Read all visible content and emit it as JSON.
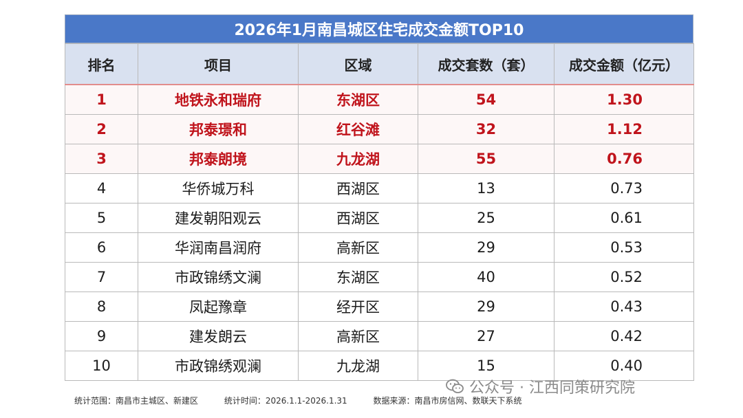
{
  "title": "2026年1月南昌城区住宅成交金额TOP10",
  "headers": [
    "排名",
    "项目",
    "区域",
    "成交套数（套）",
    "成交金额（亿元）"
  ],
  "rows": [
    {
      "rank": "1",
      "project": "地铁永和瑞府",
      "district": "东湖区",
      "units": "54",
      "amount": "1.30"
    },
    {
      "rank": "2",
      "project": "邦泰璟和",
      "district": "红谷滩",
      "units": "32",
      "amount": "1.12"
    },
    {
      "rank": "3",
      "project": "邦泰朗境",
      "district": "九龙湖",
      "units": "55",
      "amount": "0.76"
    },
    {
      "rank": "4",
      "project": "华侨城万科",
      "district": "西湖区",
      "units": "13",
      "amount": "0.73"
    },
    {
      "rank": "5",
      "project": "建发朝阳观云",
      "district": "西湖区",
      "units": "25",
      "amount": "0.61"
    },
    {
      "rank": "6",
      "project": "华润南昌润府",
      "district": "高新区",
      "units": "29",
      "amount": "0.53"
    },
    {
      "rank": "7",
      "project": "市政锦绣文澜",
      "district": "东湖区",
      "units": "40",
      "amount": "0.52"
    },
    {
      "rank": "8",
      "project": "凤起豫章",
      "district": "经开区",
      "units": "29",
      "amount": "0.43"
    },
    {
      "rank": "9",
      "project": "建发朗云",
      "district": "高新区",
      "units": "27",
      "amount": "0.42"
    },
    {
      "rank": "10",
      "project": "市政锦绣观澜",
      "district": "九龙湖",
      "units": "15",
      "amount": "0.40"
    }
  ],
  "footer": {
    "scope": "统计范围：南昌市主城区、新建区",
    "period": "统计时间：2026.1.1-2026.1.31",
    "source": "数据来源：南昌市房信网、数联天下系统"
  },
  "brand": {
    "text": "公众号 · 江西同策研究院",
    "icon": "wechat-icon"
  },
  "colors": {
    "title_bg": "#4a78c8",
    "header_bg": "#d9e1f0",
    "highlight_text": "#c0141c"
  }
}
